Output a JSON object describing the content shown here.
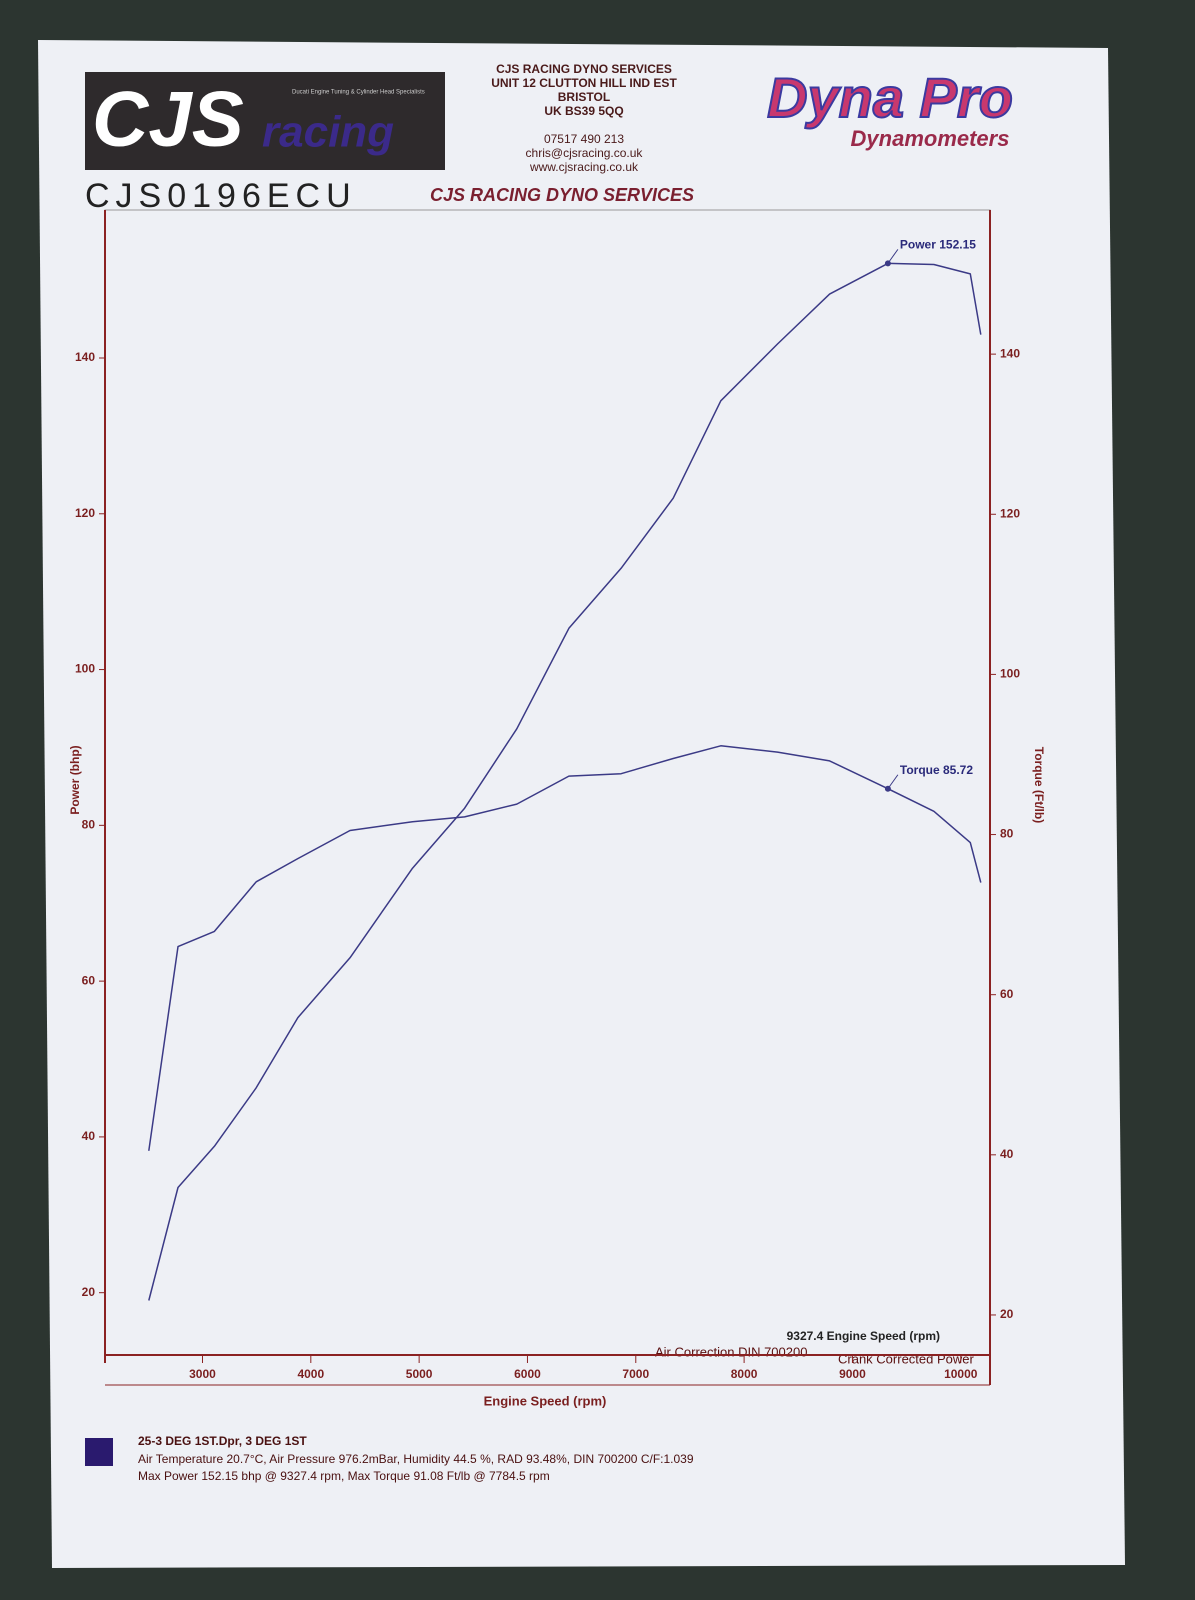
{
  "header": {
    "logo_left": "CJS",
    "logo_left_2": "racing",
    "tagline": "Ducati Engine Tuning & Cylinder Head Specialists",
    "address": [
      "CJS RACING DYNO SERVICES",
      "UNIT 12 CLUTTON HILL IND EST",
      "BRISTOL",
      "UK BS39 5QQ"
    ],
    "contact": [
      "07517 490 213",
      "chris@cjsracing.co.uk",
      "www.cjsracing.co.uk"
    ],
    "logo_right": "Dyna Pro",
    "logo_right_sub": "Dynamometers",
    "handwritten": "CJS0196ECU"
  },
  "chart_data": {
    "type": "line",
    "title": "CJS RACING DYNO SERVICES",
    "x_label": "Engine Speed (rpm)",
    "y_label": "Power (bhp)",
    "y2_label": "Torque (Ft/lb)",
    "x": [
      2504,
      2774,
      3110,
      3496,
      3880,
      4362,
      4939,
      5420,
      5902,
      6383,
      6864,
      7345,
      7784.5,
      8308,
      8789,
      9327.4,
      9752,
      10088,
      10185
    ],
    "series": [
      {
        "color": "#3b3a86",
        "values": [
          19,
          33.5,
          38.8,
          46.3,
          55.3,
          63,
          74.5,
          82.2,
          92.4,
          105.3,
          113,
          122,
          134.5,
          141.8,
          148.2,
          152.15,
          152,
          150.8,
          143
        ]
      },
      {
        "color": "#3b3a86",
        "axis": "y2",
        "values": [
          40.5,
          66,
          67.9,
          74.1,
          77,
          80.5,
          81.6,
          82.2,
          83.8,
          87.3,
          87.6,
          89.5,
          91.08,
          90.3,
          89.2,
          85.72,
          82.9,
          79,
          74
        ]
      }
    ],
    "annotations": [
      {
        "text": "Power 152.15",
        "x": 9327.4,
        "y": 152.15
      },
      {
        "text": "Torque 85.72",
        "x": 9327.4,
        "y": 85.72,
        "axis": "y2"
      }
    ],
    "notes": [
      "9327.4 Engine Speed (rpm)",
      "Air Correction DIN 700200",
      "Crank Corrected Power"
    ],
    "xlim": [
      2100,
      10270
    ],
    "xticks": [
      3000,
      4000,
      5000,
      6000,
      7000,
      8000,
      9000,
      10000
    ],
    "ylim": [
      12,
      159
    ],
    "yticks": [
      20,
      40,
      60,
      80,
      100,
      120,
      140
    ],
    "y2lim": [
      15,
      158
    ],
    "y2ticks": [
      20,
      40,
      60,
      80,
      100,
      120,
      140
    ],
    "axis_color": "#8b2222",
    "grid": false,
    "legend": {
      "label": "25-3 DEG 1ST.Dpr,  3 DEG 1ST",
      "color": "#2a1a6e"
    }
  },
  "footer": [
    "Air Temperature 20.7°C, Air Pressure 976.2mBar, Humidity 44.5 %, RAD 93.48%,   DIN 700200  C/F:1.039",
    "Max Power 152.15 bhp @ 9327.4 rpm, Max Torque 91.08 Ft/lb @ 7784.5 rpm"
  ]
}
